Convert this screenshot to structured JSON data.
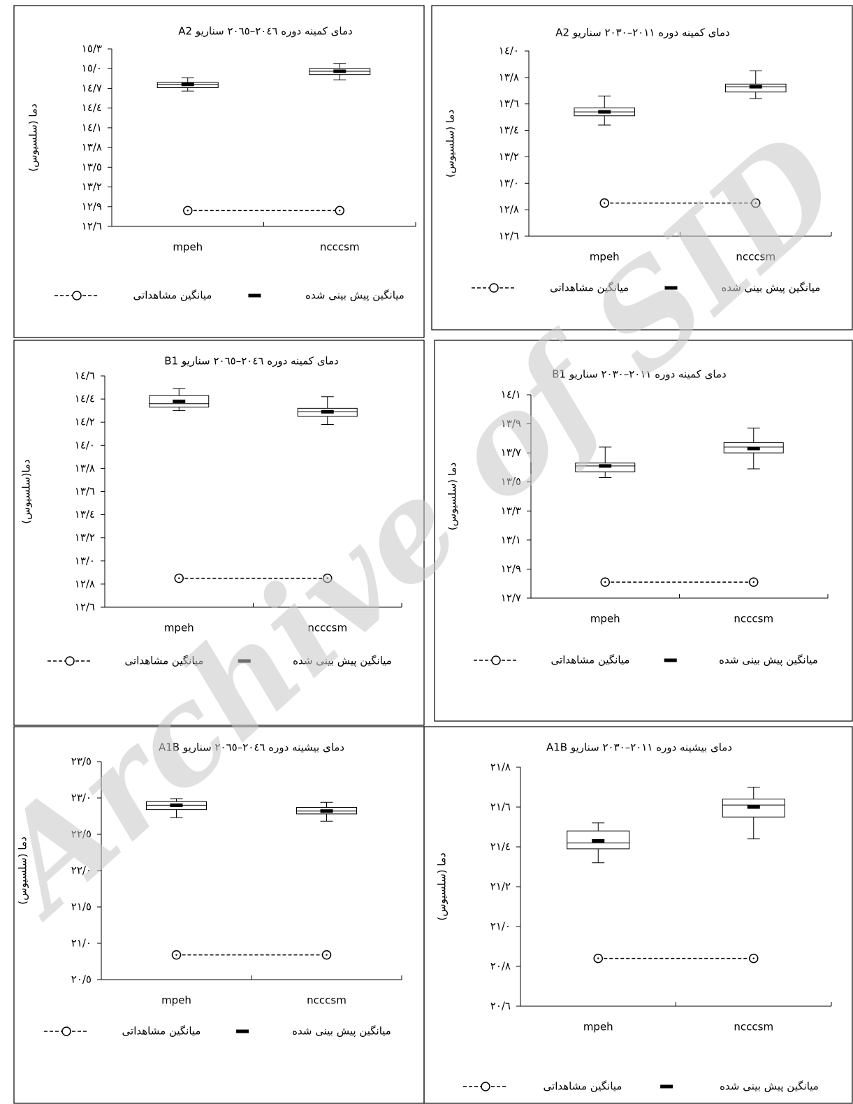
{
  "watermark": "Archive of SID",
  "chart_data": [
    {
      "type": "box",
      "title": "دمای کمینه دوره ٢٠٤٦–٢٠٦٥ سناریو A2",
      "y_label": "دما (سلسیوس)",
      "categories": [
        "mpeh",
        "ncccsm"
      ],
      "boxes": [
        {
          "min": 14.66,
          "q1": 14.71,
          "median": 14.76,
          "q3": 14.79,
          "max": 14.86
        },
        {
          "min": 14.83,
          "q1": 14.91,
          "median": 14.96,
          "q3": 15.0,
          "max": 15.08
        }
      ],
      "series": [
        {
          "name": "میانگین پیش بینی شده",
          "color": "#000000",
          "values": [
            14.76,
            14.96
          ]
        },
        {
          "name": "میانگین مشاهداتی",
          "color": "#000000",
          "values": [
            12.84,
            12.84
          ]
        }
      ],
      "ylim": [
        12.6,
        15.3
      ],
      "yticks": [
        {
          "value": 12.6,
          "label": "١٢/٦"
        },
        {
          "value": 12.9,
          "label": "١٢/٩"
        },
        {
          "value": 13.2,
          "label": "١٣/٢"
        },
        {
          "value": 13.5,
          "label": "١٣/٥"
        },
        {
          "value": 13.8,
          "label": "١٣/٨"
        },
        {
          "value": 14.1,
          "label": "١٤/١"
        },
        {
          "value": 14.4,
          "label": "١٤/٤"
        },
        {
          "value": 14.7,
          "label": "١٤/٧"
        },
        {
          "value": 15.0,
          "label": "١٥/٠"
        },
        {
          "value": 15.3,
          "label": "١٥/٣"
        }
      ]
    },
    {
      "type": "box",
      "title": "دمای کمینه دوره ٢٠١١–٢٠٣٠ سناریو A2",
      "y_label": "دما (سلسیوس)",
      "categories": [
        "mpeh",
        "ncccsm"
      ],
      "boxes": [
        {
          "min": 13.44,
          "q1": 13.51,
          "median": 13.54,
          "q3": 13.57,
          "max": 13.66
        },
        {
          "min": 13.64,
          "q1": 13.69,
          "median": 13.73,
          "q3": 13.75,
          "max": 13.85
        }
      ],
      "series": [
        {
          "name": "میانگین پیش بینی شده",
          "color": "#000000",
          "values": [
            13.54,
            13.73
          ]
        },
        {
          "name": "میانگین مشاهداتی",
          "color": "#000000",
          "values": [
            12.85,
            12.85
          ]
        }
      ],
      "ylim": [
        12.6,
        14.0
      ],
      "yticks": [
        {
          "value": 12.6,
          "label": "١٢/٦"
        },
        {
          "value": 12.8,
          "label": "١٢/٨"
        },
        {
          "value": 13.0,
          "label": "١٣/٠"
        },
        {
          "value": 13.2,
          "label": "١٣/٢"
        },
        {
          "value": 13.4,
          "label": "١٣/٤"
        },
        {
          "value": 13.6,
          "label": "١٣/٦"
        },
        {
          "value": 13.8,
          "label": "١٣/٨"
        },
        {
          "value": 14.0,
          "label": "١٤/٠"
        }
      ]
    },
    {
      "type": "box",
      "title": "دمای کمینه دوره ٢٠٤٦–٢٠٦٥ سناریو B1",
      "y_label": "دما(سلسیوس)",
      "categories": [
        "mpeh",
        "ncccsm"
      ],
      "boxes": [
        {
          "min": 14.3,
          "q1": 14.33,
          "median": 14.36,
          "q3": 14.43,
          "max": 14.49
        },
        {
          "min": 14.18,
          "q1": 14.25,
          "median": 14.29,
          "q3": 14.32,
          "max": 14.42
        }
      ],
      "series": [
        {
          "name": "میانگین پیش بینی شده",
          "color": "#000000",
          "values": [
            14.38,
            14.29
          ]
        },
        {
          "name": "میانگین مشاهداتی",
          "color": "#000000",
          "values": [
            12.85,
            12.85
          ]
        }
      ],
      "ylim": [
        12.6,
        14.6
      ],
      "yticks": [
        {
          "value": 12.6,
          "label": "١٢/٦"
        },
        {
          "value": 12.8,
          "label": "١٢/٨"
        },
        {
          "value": 13.0,
          "label": "١٣/٠"
        },
        {
          "value": 13.2,
          "label": "١٣/٢"
        },
        {
          "value": 13.4,
          "label": "١٣/٤"
        },
        {
          "value": 13.6,
          "label": "١٣/٦"
        },
        {
          "value": 13.8,
          "label": "١٣/٨"
        },
        {
          "value": 14.0,
          "label": "١٤/٠"
        },
        {
          "value": 14.2,
          "label": "١٤/٢"
        },
        {
          "value": 14.4,
          "label": "١٤/٤"
        },
        {
          "value": 14.6,
          "label": "١٤/٦"
        }
      ]
    },
    {
      "type": "box",
      "title": "دمای کمینه دوره ٢٠١١–٢٠٣٠ سناریو  B1",
      "y_label": "دما (سلسیوس)",
      "categories": [
        "mpeh",
        "ncccsm"
      ],
      "boxes": [
        {
          "min": 13.53,
          "q1": 13.57,
          "median": 13.61,
          "q3": 13.63,
          "max": 13.74
        },
        {
          "min": 13.59,
          "q1": 13.7,
          "median": 13.74,
          "q3": 13.77,
          "max": 13.87
        }
      ],
      "series": [
        {
          "name": "میانگین پیش بینی شده",
          "color": "#000000",
          "values": [
            13.61,
            13.73
          ]
        },
        {
          "name": "میانگین مشاهداتی",
          "color": "#000000",
          "values": [
            12.81,
            12.81
          ]
        }
      ],
      "ylim": [
        12.7,
        14.1
      ],
      "yticks": [
        {
          "value": 12.7,
          "label": "١٢/٧"
        },
        {
          "value": 12.9,
          "label": "١٢/٩"
        },
        {
          "value": 13.1,
          "label": "١٣/١"
        },
        {
          "value": 13.3,
          "label": "١٣/٣"
        },
        {
          "value": 13.5,
          "label": "١٣/٥"
        },
        {
          "value": 13.7,
          "label": "١٣/٧"
        },
        {
          "value": 13.9,
          "label": "١٣/٩"
        },
        {
          "value": 14.1,
          "label": "١٤/١"
        }
      ]
    },
    {
      "type": "box",
      "title": "دمای بیشینه دوره ٢٠٤٦–٢٠٦٥ سناریو A1B",
      "y_label": "دما (سلسیوس)",
      "categories": [
        "mpeh",
        "ncccsm"
      ],
      "boxes": [
        {
          "min": 22.73,
          "q1": 22.84,
          "median": 22.9,
          "q3": 22.95,
          "max": 22.99
        },
        {
          "min": 22.68,
          "q1": 22.78,
          "median": 22.82,
          "q3": 22.87,
          "max": 22.94
        }
      ],
      "series": [
        {
          "name": "میانگین پیش بینی شده",
          "color": "#000000",
          "values": [
            22.9,
            22.82
          ]
        },
        {
          "name": "میانگین مشاهداتی",
          "color": "#000000",
          "values": [
            20.84,
            20.84
          ]
        }
      ],
      "ylim": [
        20.5,
        23.5
      ],
      "yticks": [
        {
          "value": 20.5,
          "label": "٢٠/٥"
        },
        {
          "value": 21.0,
          "label": "٢١/٠"
        },
        {
          "value": 21.5,
          "label": "٢١/٥"
        },
        {
          "value": 22.0,
          "label": "٢٢/٠"
        },
        {
          "value": 22.5,
          "label": "٢٢/٥"
        },
        {
          "value": 23.0,
          "label": "٢٣/٠"
        },
        {
          "value": 23.5,
          "label": "٢٣/٥"
        }
      ]
    },
    {
      "type": "box",
      "title": "دمای بیشینه دوره ٢٠١١–٢٠٣٠ سناریو A1B",
      "y_label": "دما (سلسیوس)",
      "categories": [
        "mpeh",
        "ncccsm"
      ],
      "boxes": [
        {
          "min": 21.32,
          "q1": 21.39,
          "median": 21.42,
          "q3": 21.48,
          "max": 21.52
        },
        {
          "min": 21.44,
          "q1": 21.55,
          "median": 21.61,
          "q3": 21.64,
          "max": 21.7
        }
      ],
      "series": [
        {
          "name": "میانگین پیش بینی شده",
          "color": "#000000",
          "values": [
            21.43,
            21.6
          ]
        },
        {
          "name": "میانگین مشاهداتی",
          "color": "#000000",
          "values": [
            20.84,
            20.84
          ]
        }
      ],
      "ylim": [
        20.6,
        21.8
      ],
      "yticks": [
        {
          "value": 20.6,
          "label": "٢٠/٦"
        },
        {
          "value": 20.8,
          "label": "٢٠/٨"
        },
        {
          "value": 21.0,
          "label": "٢١/٠"
        },
        {
          "value": 21.2,
          "label": "٢١/٢"
        },
        {
          "value": 21.4,
          "label": "٢١/٤"
        },
        {
          "value": 21.6,
          "label": "٢١/٦"
        },
        {
          "value": 21.8,
          "label": "٢١/٨"
        }
      ]
    }
  ]
}
